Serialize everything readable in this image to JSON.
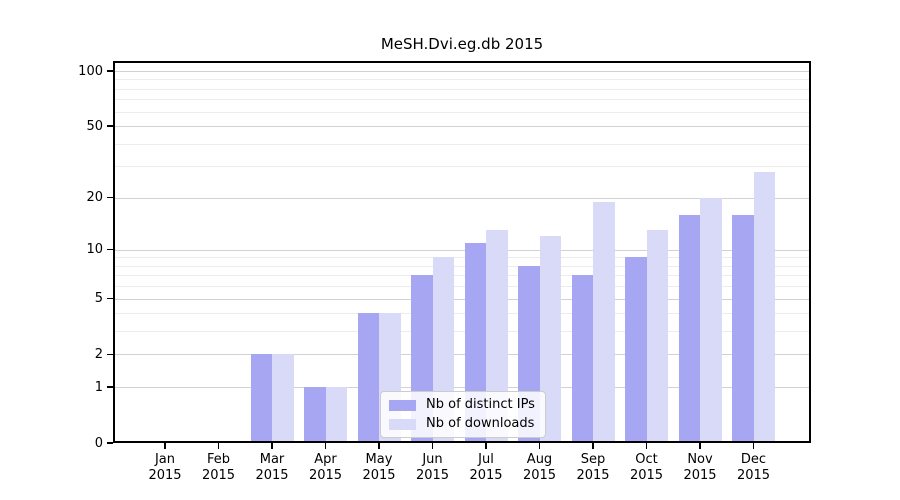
{
  "chart_data": {
    "type": "bar",
    "title": "MeSH.Dvi.eg.db 2015",
    "categories": [
      "Jan",
      "Feb",
      "Mar",
      "Apr",
      "May",
      "Jun",
      "Jul",
      "Aug",
      "Sep",
      "Oct",
      "Nov",
      "Dec"
    ],
    "year_label": "2015",
    "series": [
      {
        "name": "Nb of distinct IPs",
        "color": "#a6a6f3",
        "values": [
          0,
          0,
          2,
          1,
          4,
          7,
          11,
          8,
          7,
          9,
          16,
          16
        ]
      },
      {
        "name": "Nb of downloads",
        "color": "#d9d9f8",
        "values": [
          0,
          0,
          2,
          1,
          4,
          9,
          13,
          12,
          19,
          13,
          20,
          28
        ]
      }
    ],
    "y_scale": "log1p",
    "y_major_values": [
      0,
      1,
      2,
      5,
      10,
      20,
      50,
      100
    ],
    "y_minor_values": [
      3,
      4,
      6,
      7,
      8,
      9,
      30,
      40,
      60,
      70,
      80,
      90
    ],
    "y_axis_top_value": 113,
    "grid": "horizontal",
    "legend_position": "lower-center",
    "colors": {
      "major_grid": "#d2d2d2",
      "minor_grid": "#ececec",
      "axis": "#000000",
      "legend_border": "#cccccc"
    }
  }
}
